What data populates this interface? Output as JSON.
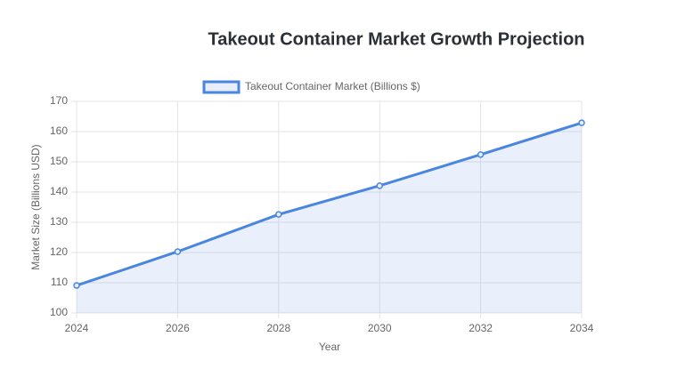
{
  "chart_data": {
    "type": "line",
    "title": "Takeout Container Market Growth Projection",
    "x_label": "Year",
    "y_label": "Market Size (Billions USD)",
    "x": [
      2024,
      2026,
      2028,
      2030,
      2032,
      2034
    ],
    "series": [
      {
        "name": "Takeout Container Market (Billions $)",
        "color": "#4a86e0",
        "values": [
          109.1,
          120.3,
          132.6,
          142.1,
          152.4,
          162.9
        ]
      }
    ],
    "xlim": [
      2024,
      2034
    ],
    "xticks": [
      2024,
      2026,
      2028,
      2030,
      2032,
      2034
    ],
    "ylim": [
      100,
      170
    ],
    "yticks": [
      100,
      110,
      120,
      130,
      140,
      150,
      160,
      170
    ],
    "grid": true,
    "fill": true,
    "legend": "top"
  }
}
